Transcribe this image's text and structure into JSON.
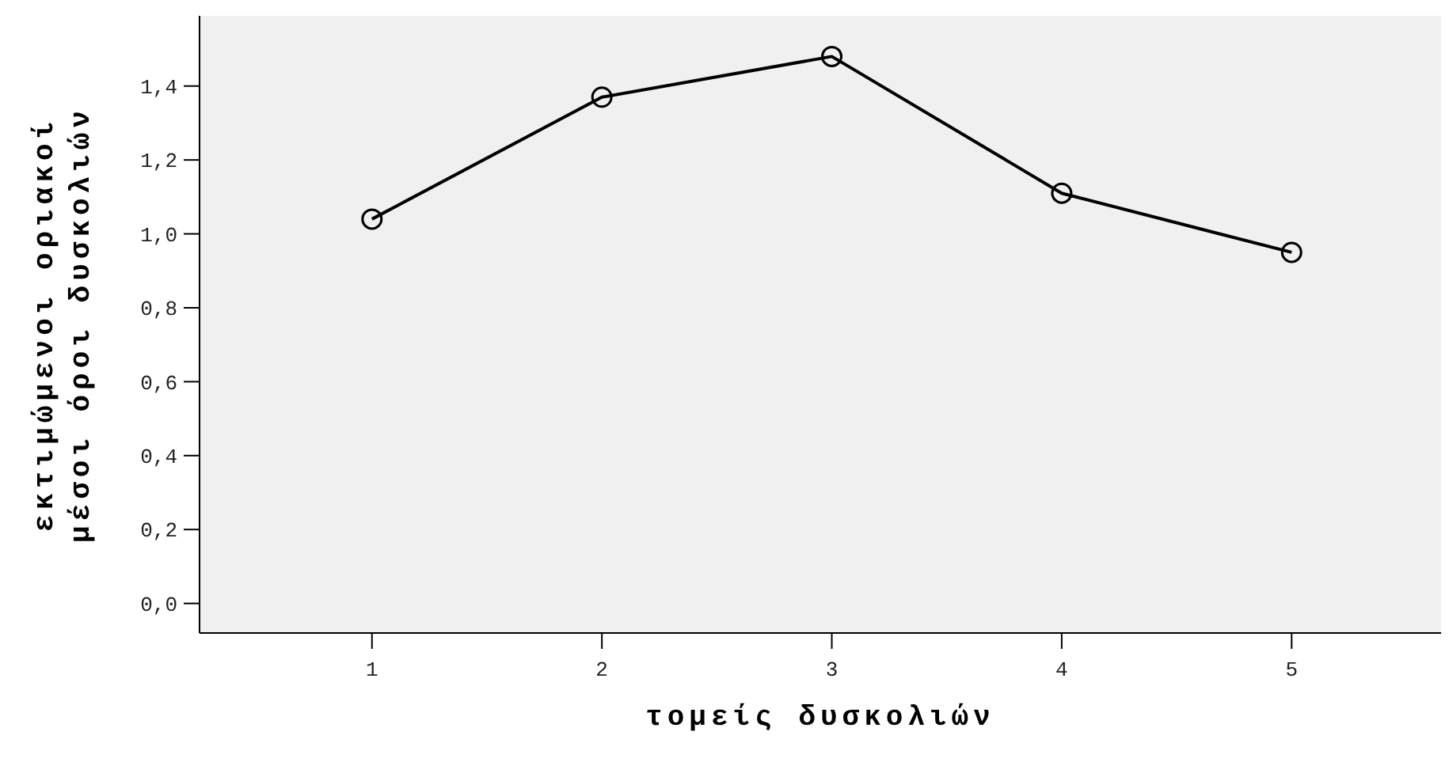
{
  "chart_data": {
    "type": "line",
    "xlabel": "τομείς δυσκολιών",
    "ylabel": "εκτιμώμενοι οριακοί μέσοι όροι δυσκολιών",
    "x": [
      1,
      2,
      3,
      4,
      5
    ],
    "series": [
      {
        "color": "#000000",
        "values": [
          1.04,
          1.37,
          1.48,
          1.11,
          0.95
        ]
      }
    ],
    "xlim": [
      0.25,
      5.65
    ],
    "xticks": [
      1,
      2,
      3,
      4,
      5
    ],
    "ylim": [
      -0.08,
      1.59
    ],
    "yticks": [
      {
        "value": 0,
        "label": "0,0"
      },
      {
        "value": 0.2,
        "label": "0,2"
      },
      {
        "value": 0.4,
        "label": "0,4"
      },
      {
        "value": 0.6,
        "label": "0,6"
      },
      {
        "value": 0.8,
        "label": "0,8"
      },
      {
        "value": 1.0,
        "label": "1,0"
      },
      {
        "value": 1.2,
        "label": "1,2"
      },
      {
        "value": 1.4,
        "label": "1,4"
      }
    ],
    "grid": false,
    "marker": "circle",
    "line_style": "solid"
  }
}
